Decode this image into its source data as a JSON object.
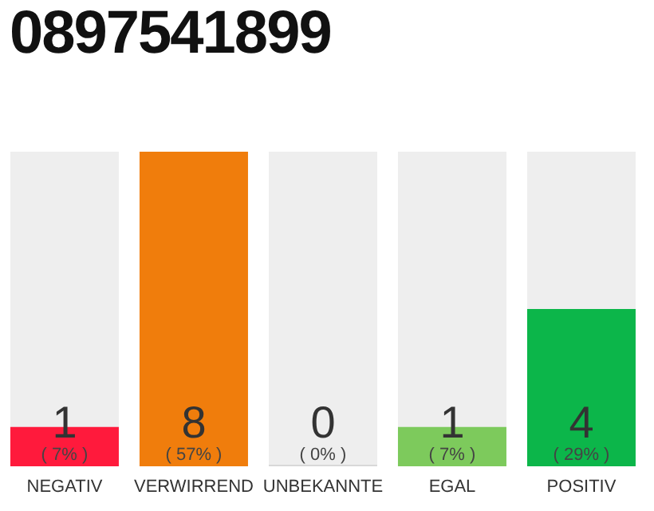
{
  "chart_data": {
    "type": "bar",
    "title": "0897541899",
    "categories": [
      "NEGATIV",
      "VERWIRREND",
      "UNBEKANNTE",
      "EGAL",
      "POSITIV"
    ],
    "values": [
      1,
      8,
      0,
      1,
      4
    ],
    "colors": [
      "#ff1a3c",
      "#f07d0c",
      "#d8d8d8",
      "#7dca5c",
      "#0cb64a"
    ],
    "value_labels": [
      "1 ( 7% )",
      "8 ( 57% )",
      "0 ( 0% )",
      "1 ( 7% )",
      "4 ( 29% )"
    ]
  }
}
